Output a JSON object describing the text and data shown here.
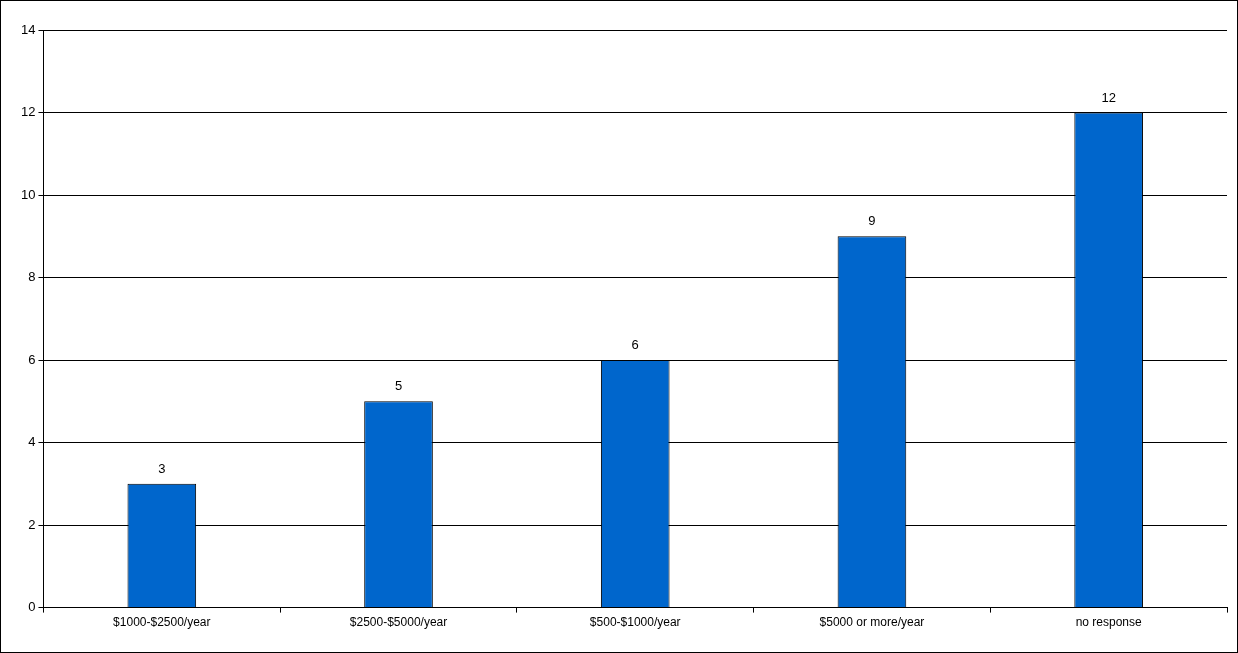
{
  "chart_data": {
    "type": "bar",
    "categories": [
      "$1000-$2500/year",
      "$2500-$5000/year",
      "$500-$1000/year",
      "$5000 or more/year",
      "no response"
    ],
    "values": [
      3,
      5,
      6,
      9,
      12
    ],
    "color": "#0066cc",
    "ylim": [
      0,
      14
    ],
    "yticks": [
      0,
      2,
      4,
      6,
      8,
      10,
      12,
      14
    ],
    "grid": "y",
    "data_labels": true,
    "legend": false
  }
}
